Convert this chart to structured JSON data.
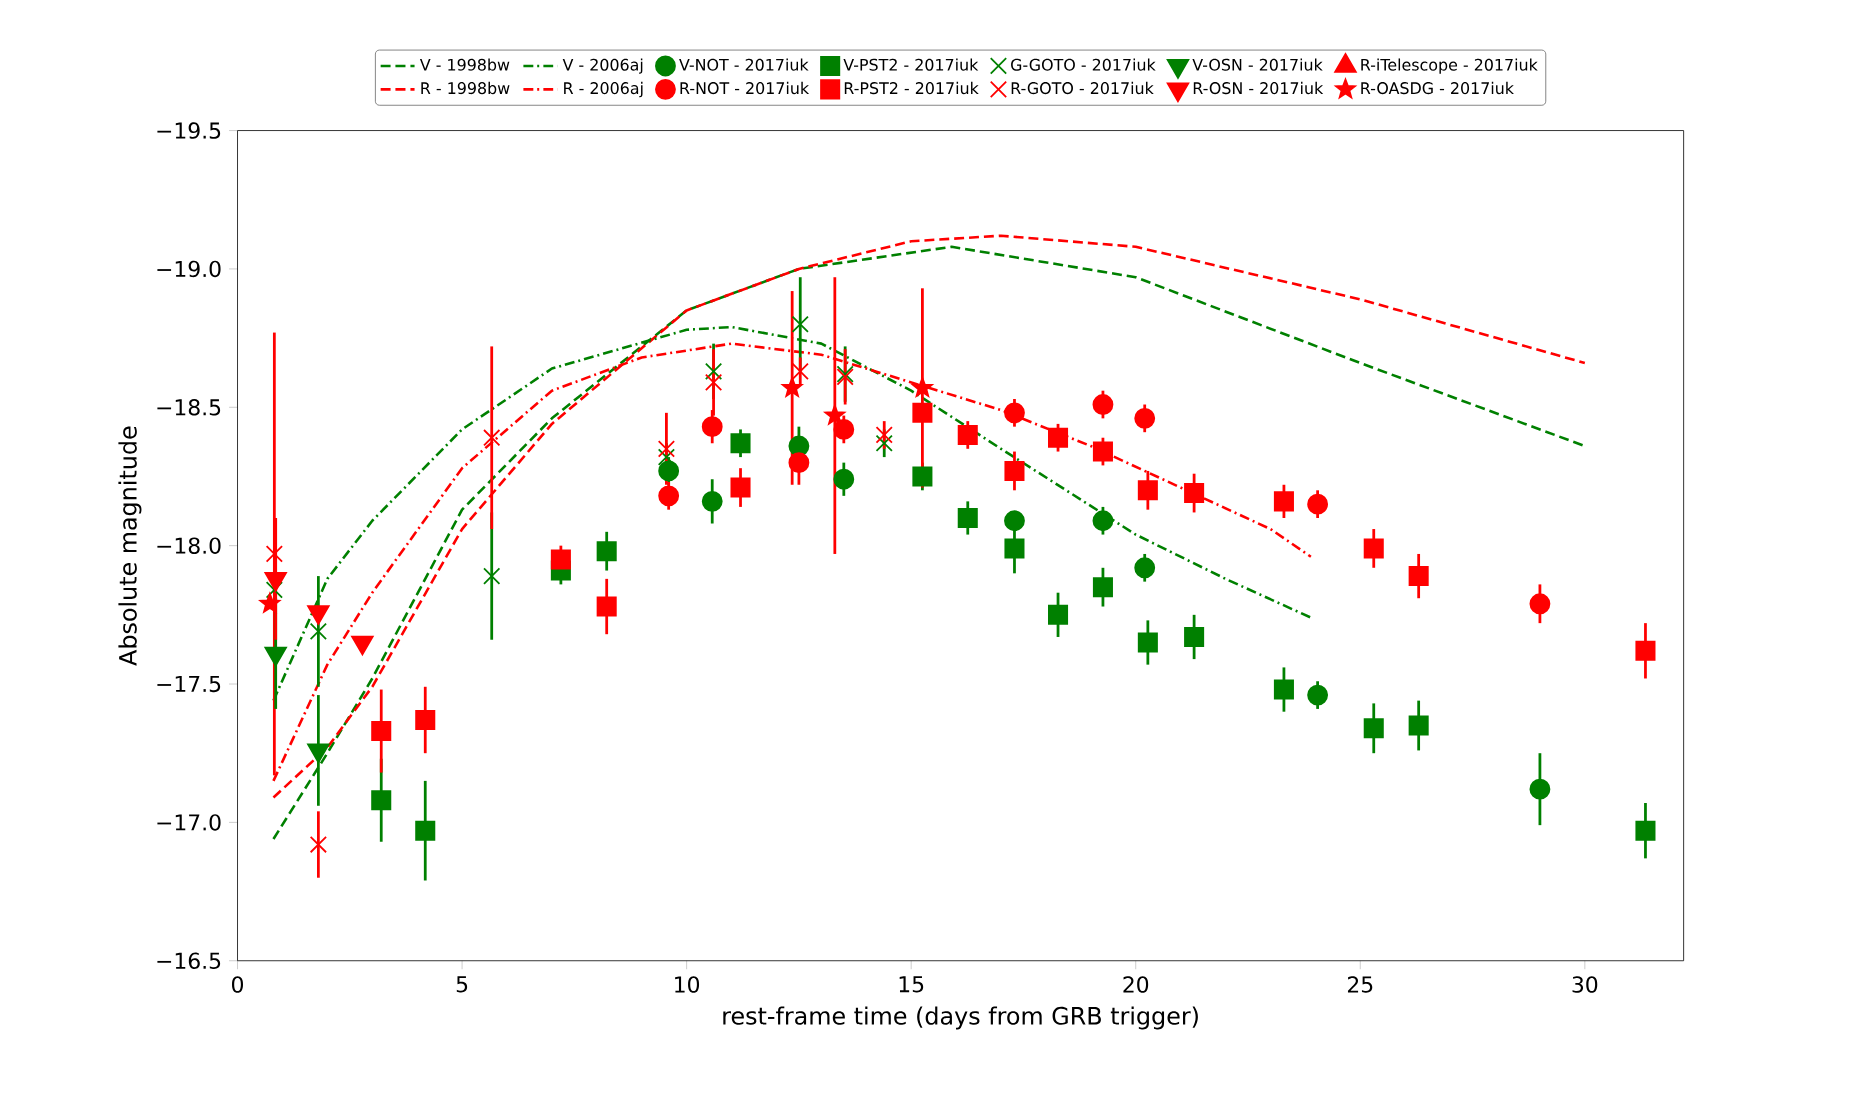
{
  "chart_data": {
    "type": "scatter",
    "xlabel": "rest-frame time (days from GRB trigger)",
    "ylabel": "Absolute magnitude",
    "legend": "top",
    "xlim": [
      0,
      32.2
    ],
    "ylim": [
      -16.5,
      -19.5
    ],
    "xticks": [
      0,
      5,
      10,
      15,
      20,
      25,
      30
    ],
    "yticks": [
      {
        "value": -19.5,
        "label": "−19.5"
      },
      {
        "value": -19.0,
        "label": "−19.0"
      },
      {
        "value": -18.5,
        "label": "−18.5"
      },
      {
        "value": -18.0,
        "label": "−18.0"
      },
      {
        "value": -17.5,
        "label": "−17.5"
      },
      {
        "value": -17.0,
        "label": "−17.0"
      },
      {
        "value": -16.5,
        "label": "−16.5"
      }
    ],
    "series": [
      {
        "name": "V - 1998bw",
        "color": "#008000",
        "type": "line",
        "line_style": "dashed",
        "marker": "none",
        "x": [
          0.8,
          2,
          3,
          5,
          7,
          10,
          12.5,
          15.9,
          20,
          25,
          30
        ],
        "values": [
          -16.94,
          -17.25,
          -17.52,
          -18.13,
          -18.46,
          -18.85,
          -19.0,
          -19.08,
          -18.97,
          -18.66,
          -18.36
        ]
      },
      {
        "name": "R - 1998bw",
        "color": "#ff0000",
        "type": "line",
        "line_style": "dashed",
        "marker": "none",
        "x": [
          0.8,
          2,
          3,
          5,
          7,
          10,
          12.5,
          15,
          17,
          20,
          25,
          30
        ],
        "values": [
          -17.09,
          -17.27,
          -17.49,
          -18.06,
          -18.44,
          -18.85,
          -19.0,
          -19.1,
          -19.12,
          -19.08,
          -18.89,
          -18.66
        ]
      },
      {
        "name": "V - 2006aj",
        "color": "#008000",
        "type": "line",
        "line_style": "dashdot",
        "marker": "none",
        "x": [
          0.8,
          2,
          3,
          5,
          7,
          10,
          11,
          13,
          15,
          17,
          20,
          22,
          23.9
        ],
        "values": [
          -17.44,
          -17.88,
          -18.09,
          -18.42,
          -18.64,
          -18.78,
          -18.79,
          -18.73,
          -18.56,
          -18.35,
          -18.04,
          -17.88,
          -17.74
        ]
      },
      {
        "name": "R - 2006aj",
        "color": "#ff0000",
        "type": "line",
        "line_style": "dashdot",
        "marker": "none",
        "x": [
          0.8,
          2,
          3,
          5,
          7,
          9,
          11,
          13,
          15,
          17,
          19,
          21,
          23,
          23.9
        ],
        "values": [
          -17.15,
          -17.57,
          -17.83,
          -18.28,
          -18.56,
          -18.68,
          -18.73,
          -18.69,
          -18.59,
          -18.49,
          -18.36,
          -18.21,
          -18.06,
          -17.96
        ]
      },
      {
        "name": "V-NOT - 2017iuk",
        "color": "#008000",
        "marker": "circle",
        "x": [
          9.6,
          10.57,
          12.5,
          13.5,
          17.3,
          19.27,
          20.2,
          24.05,
          29.0
        ],
        "values": [
          -18.27,
          -18.16,
          -18.36,
          -18.24,
          -18.09,
          -18.09,
          -17.92,
          -17.46,
          -17.12
        ],
        "errors": [
          0.05,
          0.08,
          0.07,
          0.06,
          null,
          0.05,
          0.05,
          0.05,
          0.13
        ]
      },
      {
        "name": "R-NOT - 2017iuk",
        "color": "#ff0000",
        "marker": "circle",
        "x": [
          9.6,
          10.57,
          12.5,
          13.5,
          17.3,
          19.27,
          20.2,
          24.05,
          29.0
        ],
        "values": [
          -18.18,
          -18.43,
          -18.3,
          -18.42,
          -18.48,
          -18.51,
          -18.46,
          -18.15,
          -17.79
        ],
        "errors": [
          0.05,
          0.06,
          0.08,
          0.05,
          0.05,
          0.05,
          0.05,
          0.05,
          0.07
        ]
      },
      {
        "name": "V-PST2 - 2017iuk",
        "color": "#008000",
        "marker": "square",
        "x": [
          3.2,
          4.18,
          7.2,
          8.22,
          11.2,
          15.25,
          16.26,
          17.3,
          18.27,
          19.27,
          20.27,
          21.3,
          23.3,
          25.3,
          26.3,
          31.35
        ],
        "values": [
          -17.08,
          -16.97,
          -17.91,
          -17.98,
          -18.37,
          -18.25,
          -18.1,
          -17.99,
          -17.75,
          -17.85,
          -17.65,
          -17.67,
          -17.48,
          -17.34,
          -17.35,
          -16.97
        ],
        "errors": [
          0.15,
          0.18,
          0.05,
          0.07,
          0.05,
          0.05,
          0.06,
          0.09,
          0.08,
          0.07,
          0.08,
          0.08,
          0.08,
          0.09,
          0.09,
          0.1
        ]
      },
      {
        "name": "R-PST2 - 2017iuk",
        "color": "#ff0000",
        "marker": "square",
        "x": [
          3.2,
          4.18,
          7.2,
          8.22,
          11.2,
          15.25,
          16.26,
          17.3,
          18.27,
          19.27,
          20.27,
          21.3,
          23.3,
          25.3,
          26.3,
          31.35
        ],
        "values": [
          -17.33,
          -17.37,
          -17.95,
          -17.78,
          -18.21,
          -18.48,
          -18.4,
          -18.27,
          -18.39,
          -18.34,
          -18.2,
          -18.19,
          -18.16,
          -17.99,
          -17.89,
          -17.62
        ],
        "errors": [
          0.15,
          0.12,
          0.05,
          0.1,
          0.07,
          null,
          0.05,
          0.07,
          0.05,
          0.05,
          0.07,
          0.07,
          0.06,
          0.07,
          0.08,
          0.1
        ]
      },
      {
        "name": "G-GOTO - 2017iuk",
        "color": "#008000",
        "marker": "cross",
        "x": [
          0.82,
          1.8,
          5.66,
          9.55,
          10.6,
          12.53,
          13.53,
          14.4
        ],
        "values": [
          -17.84,
          -17.69,
          -17.89,
          -18.32,
          -18.63,
          -18.8,
          -18.62,
          -18.37
        ],
        "errors": [
          null,
          0.2,
          0.23,
          0.05,
          0.1,
          0.17,
          0.1,
          0.05
        ]
      },
      {
        "name": "R-GOTO - 2017iuk",
        "color": "#ff0000",
        "marker": "cross",
        "x": [
          0.82,
          1.8,
          5.66,
          9.55,
          10.6,
          12.53,
          13.53,
          14.4
        ],
        "values": [
          -17.97,
          -16.92,
          -18.39,
          -18.35,
          -18.59,
          -18.63,
          -18.61,
          -18.4
        ],
        "errors": [
          0.8,
          0.12,
          0.33,
          0.13,
          0.12,
          0.05,
          0.1,
          0.05
        ]
      },
      {
        "name": "V-OSN - 2017iuk",
        "color": "#008000",
        "marker": "triangle_down",
        "x": [
          0.85,
          1.8
        ],
        "values": [
          -17.61,
          -17.26
        ],
        "errors": [
          0.2,
          0.2
        ]
      },
      {
        "name": "R-OSN - 2017iuk",
        "color": "#ff0000",
        "marker": "triangle_down",
        "x": [
          0.85,
          1.8,
          2.78
        ],
        "values": [
          -17.88,
          -17.76,
          -17.65
        ],
        "errors": [
          0.22,
          null,
          null
        ]
      },
      {
        "name": "R-iTelescope - 2017iuk",
        "color": "#ff0000",
        "marker": "triangle"
      },
      {
        "name": "R-OASDG - 2017iuk",
        "color": "#ff0000",
        "marker": "star",
        "x": [
          0.72,
          12.35,
          13.3,
          15.25
        ],
        "values": [
          -17.79,
          -18.57,
          -18.47,
          -18.57
        ],
        "errors": [
          null,
          0.35,
          0.5,
          0.36
        ]
      }
    ]
  }
}
